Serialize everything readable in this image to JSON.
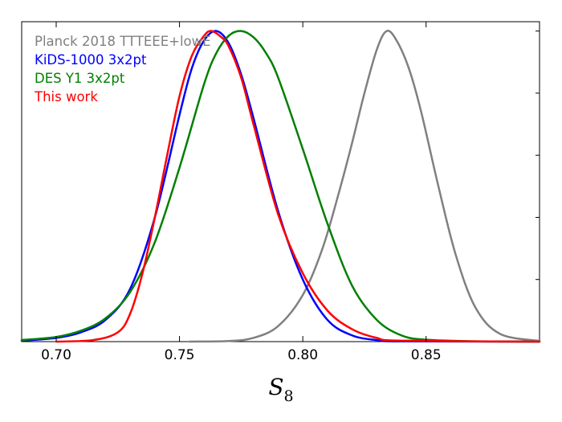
{
  "chart_data": {
    "type": "line",
    "title": "",
    "xlabel": "S",
    "xlabel_subscript": "8",
    "ylabel": "",
    "xlim": [
      0.686,
      0.896
    ],
    "ylim": [
      0,
      1.03
    ],
    "xticks": [
      0.7,
      0.75,
      0.8,
      0.85
    ],
    "xtick_labels": [
      "0.70",
      "0.75",
      "0.80",
      "0.85"
    ],
    "yticks": [
      0.2,
      0.4,
      0.6,
      0.8,
      1.0
    ],
    "ytick_labels_shown": false,
    "grid": false,
    "legend_position": "top-left",
    "series": [
      {
        "name": "Planck 2018 TTTEEE+lowE",
        "color": "#808080",
        "x": [
          0.754,
          0.77,
          0.78,
          0.79,
          0.8,
          0.808,
          0.815,
          0.82,
          0.825,
          0.83,
          0.834,
          0.838,
          0.843,
          0.848,
          0.855,
          0.862,
          0.87,
          0.88,
          0.896
        ],
        "y": [
          0.0,
          0.002,
          0.012,
          0.05,
          0.15,
          0.3,
          0.49,
          0.64,
          0.8,
          0.94,
          1.0,
          0.97,
          0.88,
          0.74,
          0.5,
          0.28,
          0.11,
          0.025,
          0.002
        ]
      },
      {
        "name": "KiDS-1000 3x2pt",
        "color": "#0000ff",
        "x": [
          0.686,
          0.7,
          0.71,
          0.72,
          0.73,
          0.74,
          0.75,
          0.755,
          0.76,
          0.765,
          0.77,
          0.775,
          0.78,
          0.79,
          0.8,
          0.81,
          0.82,
          0.83,
          0.84,
          0.896
        ],
        "y": [
          0.003,
          0.012,
          0.03,
          0.07,
          0.17,
          0.4,
          0.73,
          0.88,
          0.97,
          1.0,
          0.96,
          0.86,
          0.72,
          0.42,
          0.2,
          0.07,
          0.02,
          0.005,
          0.001,
          0.0
        ]
      },
      {
        "name": "DES Y1 3x2pt",
        "color": "#008000",
        "x": [
          0.686,
          0.7,
          0.71,
          0.72,
          0.73,
          0.74,
          0.75,
          0.76,
          0.765,
          0.77,
          0.775,
          0.78,
          0.785,
          0.79,
          0.8,
          0.81,
          0.82,
          0.83,
          0.84,
          0.85,
          0.87,
          0.896
        ],
        "y": [
          0.005,
          0.015,
          0.035,
          0.075,
          0.16,
          0.32,
          0.56,
          0.83,
          0.93,
          0.985,
          1.0,
          0.98,
          0.93,
          0.85,
          0.62,
          0.38,
          0.18,
          0.07,
          0.02,
          0.006,
          0.001,
          0.0
        ]
      },
      {
        "name": "This work",
        "color": "#ff0000",
        "x": [
          0.7,
          0.715,
          0.725,
          0.73,
          0.735,
          0.74,
          0.745,
          0.75,
          0.755,
          0.76,
          0.763,
          0.767,
          0.77,
          0.775,
          0.78,
          0.79,
          0.8,
          0.81,
          0.82,
          0.83,
          0.84,
          0.896
        ],
        "y": [
          0.0,
          0.005,
          0.03,
          0.09,
          0.22,
          0.4,
          0.6,
          0.79,
          0.92,
          0.985,
          1.0,
          0.98,
          0.95,
          0.85,
          0.7,
          0.41,
          0.22,
          0.1,
          0.04,
          0.012,
          0.003,
          0.0
        ]
      }
    ]
  }
}
